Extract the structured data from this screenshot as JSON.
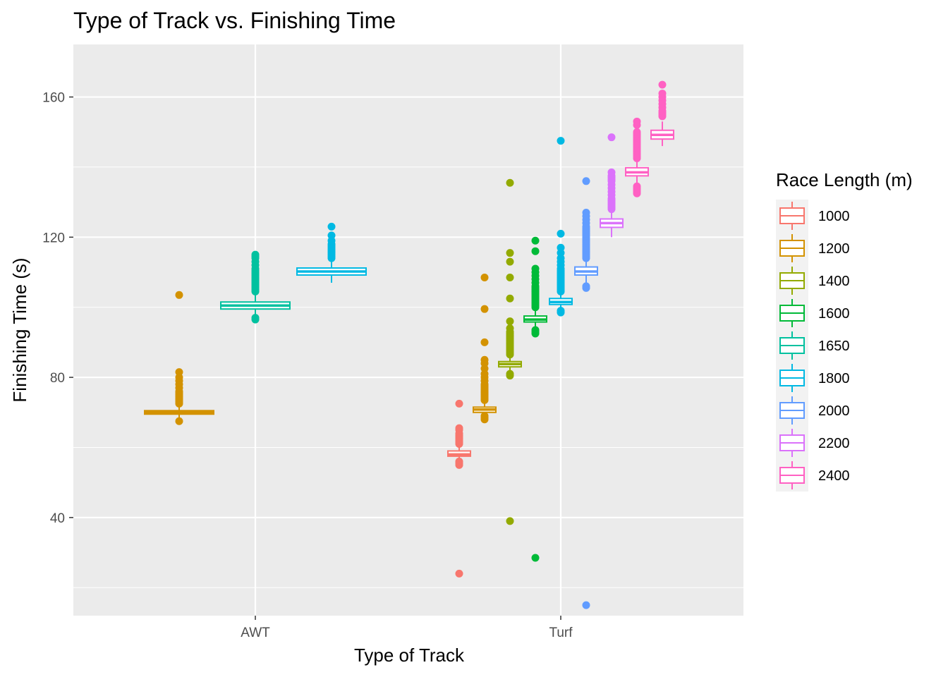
{
  "chart_data": {
    "type": "boxplot",
    "title": "Type of Track vs. Finishing Time",
    "xlabel": "Type of Track",
    "ylabel": "Finishing Time (s)",
    "categories": [
      "AWT",
      "Turf"
    ],
    "ylim": [
      12,
      175
    ],
    "yticks": [
      40,
      80,
      120,
      160
    ],
    "grid": true,
    "legend": {
      "title": "Race Length (m)",
      "placement": "right",
      "entries": [
        "1000",
        "1200",
        "1400",
        "1600",
        "1650",
        "1800",
        "2000",
        "2200",
        "2400"
      ]
    },
    "colors": {
      "1000": "#F8766D",
      "1200": "#D39200",
      "1400": "#93AA00",
      "1600": "#00BA38",
      "1650": "#00C19F",
      "1800": "#00B9E3",
      "2000": "#619CFF",
      "2200": "#DB72FB",
      "2400": "#FF61C3"
    },
    "series": [
      {
        "name": "1200",
        "track": "AWT",
        "min": 68,
        "q1": 69.5,
        "median": 70,
        "q3": 70.5,
        "max": 72,
        "outliers": [
          67.5,
          72.5,
          73,
          73.5,
          74,
          74.5,
          75,
          75.5,
          76,
          77,
          78,
          79,
          80,
          81.5,
          103.5
        ]
      },
      {
        "name": "1650",
        "track": "AWT",
        "min": 97,
        "q1": 99.5,
        "median": 100.5,
        "q3": 101.5,
        "max": 104,
        "outliers": [
          96.5,
          97,
          104.5,
          105,
          105.5,
          106,
          106.5,
          107,
          107.5,
          108,
          108.5,
          109,
          109.5,
          110,
          110.5,
          111,
          112,
          113,
          114,
          114.5,
          115
        ]
      },
      {
        "name": "1800",
        "track": "AWT",
        "min": 107,
        "q1": 109.2,
        "median": 110.2,
        "q3": 111.2,
        "max": 113,
        "outliers": [
          114,
          114.5,
          115,
          115.5,
          116,
          116.5,
          117,
          117.5,
          118,
          119,
          120.5,
          123
        ]
      },
      {
        "name": "1000",
        "track": "Turf",
        "min": 56,
        "q1": 57.5,
        "median": 58,
        "q3": 59,
        "max": 60.5,
        "outliers": [
          24,
          55,
          55.5,
          56,
          61,
          61.5,
          62,
          62.5,
          63,
          63.5,
          64,
          65,
          65.5,
          72.5
        ]
      },
      {
        "name": "1200",
        "track": "Turf",
        "min": 69,
        "q1": 70,
        "median": 70.8,
        "q3": 71.5,
        "max": 73,
        "outliers": [
          68,
          68.5,
          69,
          73.5,
          74,
          74.5,
          75,
          75.5,
          76,
          76.5,
          77,
          77.5,
          78,
          79,
          80,
          81,
          82.5,
          84,
          85,
          90,
          99.5,
          108.5
        ]
      },
      {
        "name": "1400",
        "track": "Turf",
        "min": 81.5,
        "q1": 83,
        "median": 83.8,
        "q3": 84.5,
        "max": 86,
        "outliers": [
          39,
          80.5,
          81,
          86.5,
          87,
          87.5,
          88,
          88.5,
          89,
          89.5,
          90,
          90.5,
          91,
          91.5,
          92,
          92.5,
          93,
          94,
          96,
          102.5,
          108.5,
          113,
          115.5,
          135.5
        ]
      },
      {
        "name": "1600",
        "track": "Turf",
        "min": 94,
        "q1": 95.8,
        "median": 96.5,
        "q3": 97.5,
        "max": 99.5,
        "outliers": [
          28.5,
          92.5,
          93,
          93.5,
          100,
          100.5,
          101,
          101.5,
          102,
          102.5,
          103,
          103.5,
          104,
          104.5,
          105,
          105.5,
          106,
          107,
          108,
          109,
          110,
          111,
          116,
          119
        ]
      },
      {
        "name": "1800",
        "track": "Turf",
        "min": 99.5,
        "q1": 100.8,
        "median": 101.5,
        "q3": 102.5,
        "max": 104,
        "outliers": [
          98.5,
          99,
          104.5,
          105,
          105.5,
          106,
          106.5,
          107,
          107.5,
          108,
          108.5,
          109,
          109.5,
          110,
          110.5,
          111,
          112,
          113,
          114,
          115.5,
          117,
          121,
          147.5
        ]
      },
      {
        "name": "2000",
        "track": "Turf",
        "min": 107,
        "q1": 109.2,
        "median": 110.2,
        "q3": 111.5,
        "max": 113.5,
        "outliers": [
          15,
          105.5,
          106,
          114,
          114.5,
          115,
          115.5,
          116,
          116.5,
          117,
          117.5,
          118,
          118.5,
          119,
          119.5,
          120,
          120.5,
          121,
          121.5,
          122,
          122.5,
          123,
          124,
          125,
          126,
          127,
          136
        ]
      },
      {
        "name": "2200",
        "track": "Turf",
        "min": 120,
        "q1": 122.8,
        "median": 124,
        "q3": 125.2,
        "max": 127.5,
        "outliers": [
          128,
          128.5,
          129,
          129.5,
          130,
          130.5,
          131,
          132,
          133,
          134,
          135,
          136,
          136.5,
          137,
          137.5,
          138.5,
          148.5
        ]
      },
      {
        "name": "2400",
        "track": "Turf",
        "min": 135,
        "q1": 137.5,
        "median": 138.5,
        "q3": 139.8,
        "max": 142,
        "outliers": [
          132.5,
          133,
          133.5,
          134,
          134.5,
          142.5,
          143,
          143.5,
          144,
          144.5,
          145,
          145.5,
          146,
          146.5,
          147,
          147.5,
          148,
          148.5,
          149,
          149.5,
          150,
          152,
          153
        ]
      },
      {
        "name": "2400b",
        "track": "Turf",
        "min": 146,
        "q1": 148,
        "median": 149.2,
        "q3": 150.5,
        "max": 153,
        "outliers": [
          154.5,
          155,
          155.5,
          156,
          157,
          158,
          159,
          160,
          161,
          163.5
        ]
      }
    ]
  }
}
